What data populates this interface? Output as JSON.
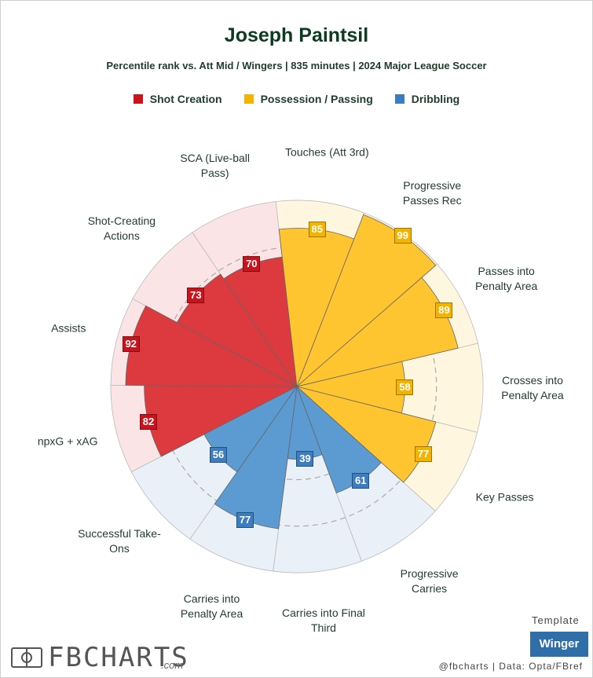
{
  "chart_data": {
    "type": "polar-bar",
    "title": "Joseph Paintsil",
    "subtitle": "Percentile rank vs. Att Mid / Wingers | 835 minutes | 2024 Major League Soccer",
    "rlim": [
      0,
      100
    ],
    "rticks": [
      25,
      50,
      75
    ],
    "series": [
      {
        "name": "Shot Creation",
        "color": "#dc3a3e",
        "label_color": "#c8151d",
        "background_color": "#fbe4e5",
        "categories": [
          "npxG + xAG",
          "Assists",
          "Shot-Creating Actions",
          "SCA (Live-ball Pass)"
        ],
        "values": [
          82,
          92,
          73,
          70
        ]
      },
      {
        "name": "Possession / Passing",
        "color": "#ffc531",
        "label_color": "#f2b400",
        "background_color": "#fff6e0",
        "categories": [
          "Touches (Att 3rd)",
          "Progressive Passes Rec",
          "Passes into Penalty Area",
          "Crosses into Penalty Area",
          "Key Passes"
        ],
        "values": [
          85,
          99,
          89,
          58,
          77
        ]
      },
      {
        "name": "Dribbling",
        "color": "#5b9bd2",
        "label_color": "#3b7dc0",
        "background_color": "#eaf0f7",
        "categories": [
          "Progressive Carries",
          "Carries into Final Third",
          "Carries into Penalty Area",
          "Successful Take-Ons"
        ],
        "values": [
          61,
          39,
          77,
          56
        ]
      }
    ]
  },
  "footer": {
    "logo": "FBCHARTS",
    "logo_suffix": ".com",
    "template_label": "Template",
    "template": "Winger",
    "credit": "@fbcharts | Data: Opta/FBref"
  }
}
